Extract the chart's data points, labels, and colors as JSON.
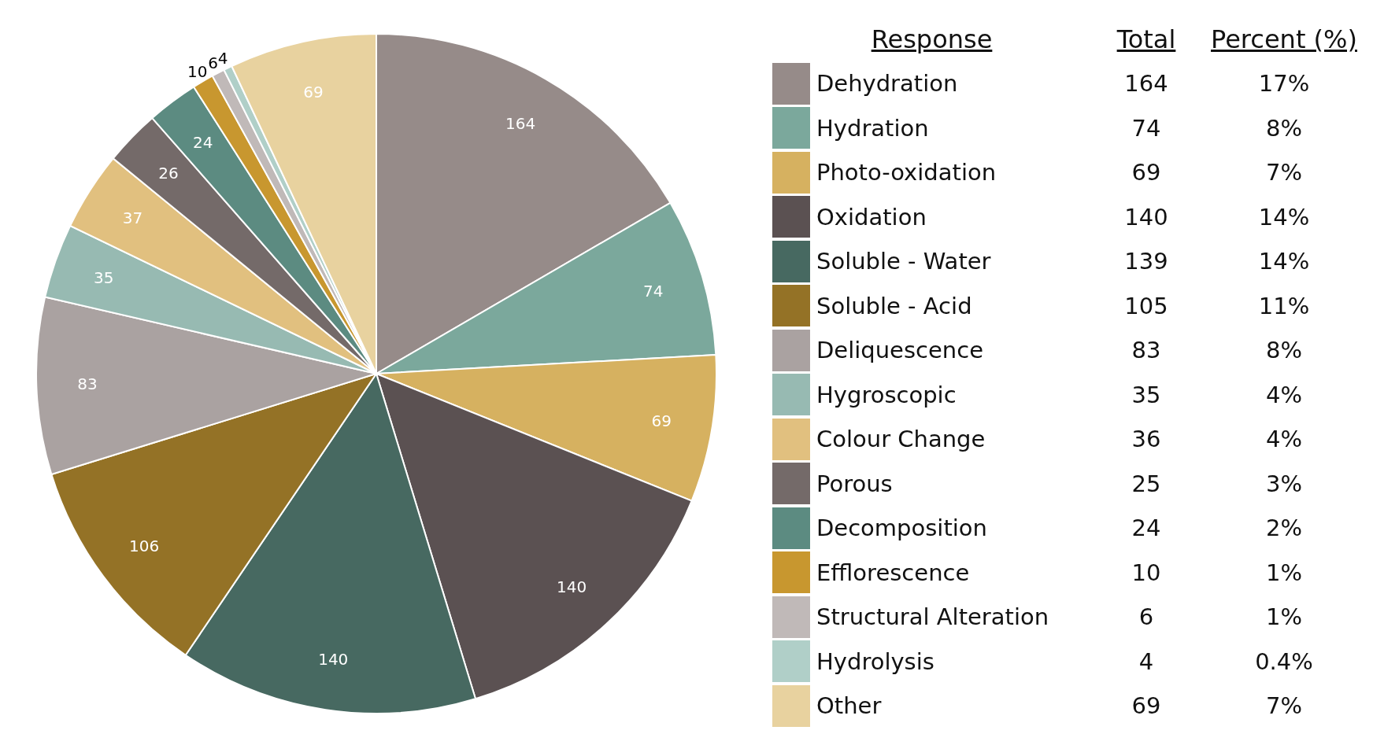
{
  "chart_data": {
    "type": "pie",
    "legend_title": "Response",
    "categories": [
      "Dehydration",
      "Hydration",
      "Photo-oxidation",
      "Oxidation",
      "Soluble - Water",
      "Soluble - Acid",
      "Deliquescence",
      "Hygroscopic",
      "Colour Change",
      "Porous",
      "Decomposition",
      "Efflorescence",
      "Structural Alteration",
      "Hydrolysis",
      "Other"
    ],
    "values": [
      164,
      74,
      69,
      140,
      140,
      106,
      83,
      35,
      37,
      26,
      24,
      10,
      6,
      4,
      69
    ],
    "colors": [
      "#968b89",
      "#7ba89c",
      "#d6b160",
      "#5b5152",
      "#476961",
      "#947226",
      "#aaa2a1",
      "#97bab2",
      "#e1c07f",
      "#746a69",
      "#5c8b81",
      "#c8972f",
      "#c0b9b8",
      "#b0cfc8",
      "#e8d29f"
    ],
    "data_labels": true,
    "legend": "right",
    "annotations": [
      "Total",
      "Percent (%)",
      "164",
      "17%",
      "74",
      "8%",
      "69",
      "7%",
      "140",
      "14%",
      "139",
      "14%",
      "105",
      "11%",
      "83",
      "8%",
      "35",
      "4%",
      "36",
      "4%",
      "25",
      "3%",
      "24",
      "2%",
      "10",
      "1%",
      "6",
      "1%",
      "4",
      "0.4%",
      "69",
      "7%"
    ]
  }
}
